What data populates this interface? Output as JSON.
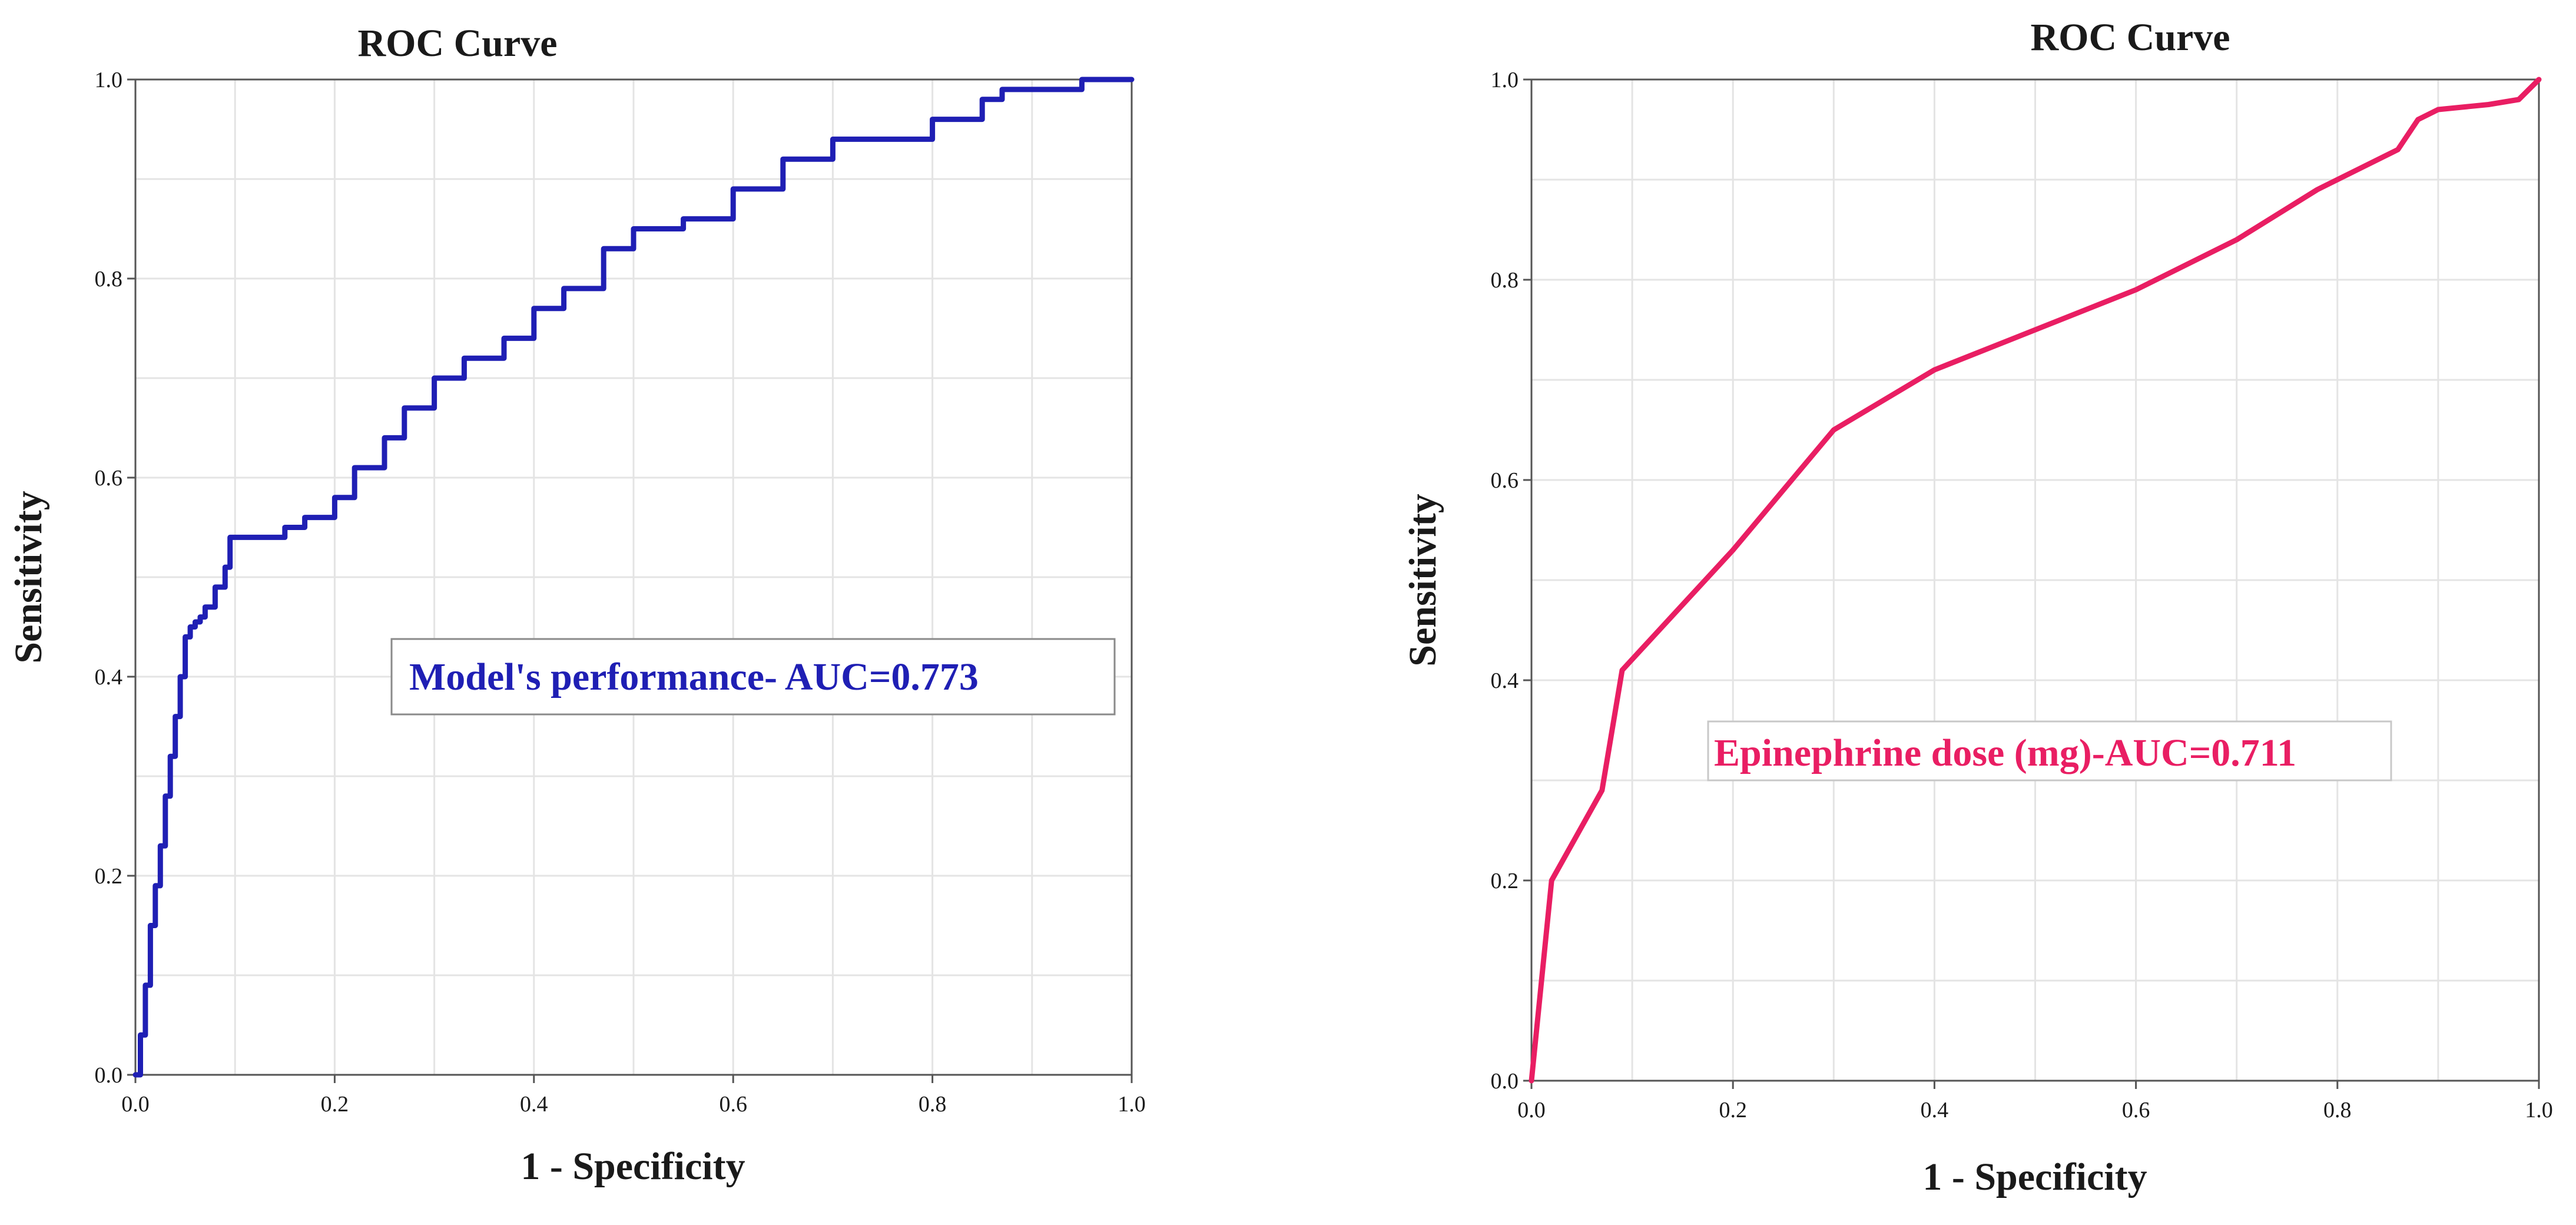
{
  "chart_data": [
    {
      "type": "line",
      "title": "ROC Curve",
      "xlabel": "1 - Specificity",
      "ylabel": "Sensitivity",
      "xlim": [
        0,
        1
      ],
      "ylim": [
        0,
        1
      ],
      "xticks": [
        "0.0",
        "0.2",
        "0.4",
        "0.6",
        "0.8",
        "1.0"
      ],
      "yticks": [
        "0.0",
        "0.2",
        "0.4",
        "0.6",
        "0.8",
        "1.0"
      ],
      "grid": true,
      "annotation": "Model's performance- AUC=0.773",
      "series": [
        {
          "color": "#1f1fb4",
          "step": true,
          "x": [
            0.0,
            0.005,
            0.01,
            0.015,
            0.02,
            0.025,
            0.03,
            0.035,
            0.04,
            0.045,
            0.05,
            0.055,
            0.06,
            0.065,
            0.07,
            0.08,
            0.09,
            0.095,
            0.1,
            0.15,
            0.17,
            0.2,
            0.22,
            0.25,
            0.27,
            0.3,
            0.33,
            0.37,
            0.4,
            0.43,
            0.47,
            0.5,
            0.55,
            0.6,
            0.65,
            0.7,
            0.8,
            0.85,
            0.87,
            0.95,
            1.0
          ],
          "y": [
            0.0,
            0.04,
            0.09,
            0.15,
            0.19,
            0.23,
            0.28,
            0.32,
            0.36,
            0.4,
            0.44,
            0.45,
            0.455,
            0.46,
            0.47,
            0.49,
            0.51,
            0.54,
            0.54,
            0.55,
            0.56,
            0.58,
            0.61,
            0.64,
            0.67,
            0.7,
            0.72,
            0.74,
            0.77,
            0.79,
            0.83,
            0.85,
            0.86,
            0.89,
            0.92,
            0.94,
            0.96,
            0.98,
            0.99,
            1.0,
            1.0
          ]
        }
      ]
    },
    {
      "type": "line",
      "title": "ROC Curve",
      "xlabel": "1 - Specificity",
      "ylabel": "Sensitivity",
      "xlim": [
        0,
        1
      ],
      "ylim": [
        0,
        1
      ],
      "xticks": [
        "0.0",
        "0.2",
        "0.4",
        "0.6",
        "0.8",
        "1.0"
      ],
      "yticks": [
        "0.0",
        "0.2",
        "0.4",
        "0.6",
        "0.8",
        "1.0"
      ],
      "grid": true,
      "annotation": "Epinephrine dose (mg)-AUC=0.711",
      "series": [
        {
          "color": "#e91e63",
          "step": false,
          "x": [
            0.0,
            0.02,
            0.07,
            0.09,
            0.2,
            0.3,
            0.4,
            0.6,
            0.7,
            0.78,
            0.82,
            0.86,
            0.88,
            0.9,
            0.95,
            0.98,
            1.0
          ],
          "y": [
            0.0,
            0.2,
            0.29,
            0.41,
            0.53,
            0.65,
            0.71,
            0.79,
            0.84,
            0.89,
            0.91,
            0.93,
            0.96,
            0.97,
            0.975,
            0.98,
            1.0
          ]
        }
      ]
    }
  ]
}
